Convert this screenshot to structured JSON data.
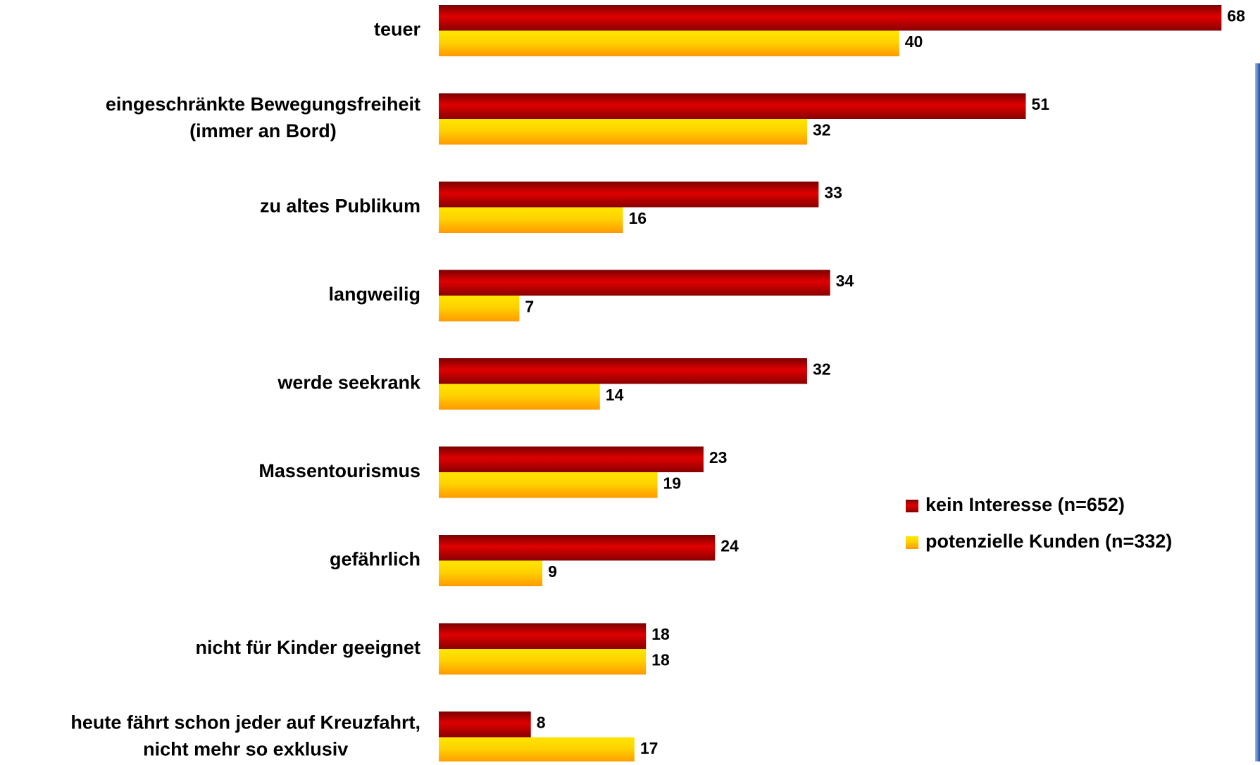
{
  "chart_data": {
    "type": "hbar",
    "categories": [
      "teuer",
      "eingeschränkte Bewegungsfreiheit\n(immer an Bord)",
      "zu altes Publikum",
      "langweilig",
      "werde seekrank",
      "Massentourismus",
      "gefährlich",
      "nicht für Kinder geeignet",
      "heute fährt schon jeder auf Kreuzfahrt,\nnicht mehr so exklusiv"
    ],
    "series": [
      {
        "name": "kein Interesse (n=652)",
        "color": "#e00000",
        "values": [
          68,
          51,
          33,
          34,
          32,
          23,
          24,
          18,
          8
        ]
      },
      {
        "name": "potenzielle Kunden (n=332)",
        "color": "#ffd200",
        "values": [
          40,
          32,
          16,
          7,
          14,
          19,
          9,
          18,
          17
        ]
      }
    ],
    "xlim": [
      0,
      70
    ]
  }
}
